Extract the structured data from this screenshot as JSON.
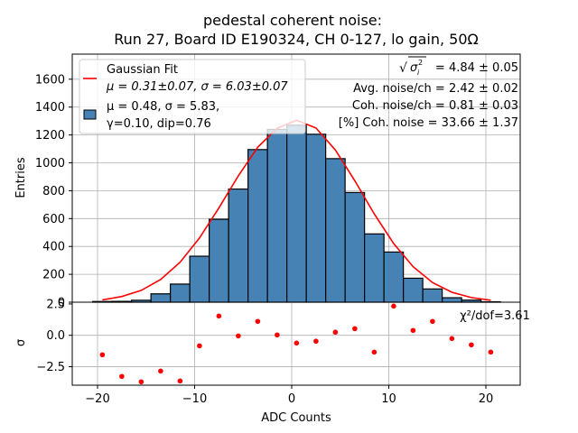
{
  "chart_data": [
    {
      "type": "bar",
      "panel": "histogram",
      "title_lines": [
        "pedestal coherent noise:",
        "Run 27, Board ID E190324, CH 0-127, lo gain, 50Ω"
      ],
      "xlabel": "",
      "ylabel": "Entries",
      "xlim": [
        -23.2,
        23.5
      ],
      "ylim": [
        0,
        1780
      ],
      "grid": true,
      "yticks": [
        0,
        200,
        400,
        600,
        800,
        1000,
        1200,
        1400,
        1600
      ],
      "ytick_labels": [
        "0",
        "200",
        "400",
        "600",
        "800",
        "1000",
        "1200",
        "1400",
        "1600"
      ],
      "xticks": [
        -20,
        -10,
        0,
        10,
        20
      ],
      "bin_width": 2,
      "categories": [
        -19.5,
        -17.5,
        -15.5,
        -13.5,
        -11.5,
        -9.5,
        -7.5,
        -5.5,
        -3.5,
        -1.5,
        0.5,
        2.5,
        4.5,
        6.5,
        8.5,
        10.5,
        12.5,
        14.5,
        16.5,
        18.5,
        20.5
      ],
      "values": [
        5,
        6,
        14,
        60,
        130,
        330,
        595,
        812,
        1095,
        1240,
        1270,
        1205,
        1030,
        787,
        490,
        360,
        172,
        95,
        32,
        15,
        3
      ],
      "bar_color": "#4682b4",
      "fit_curve": {
        "name": "Gaussian Fit",
        "color": "#ff0000",
        "x": [
          -19.5,
          -17.5,
          -15.5,
          -13.5,
          -11.5,
          -9.5,
          -7.5,
          -5.5,
          -3.5,
          -1.5,
          0.5,
          2.5,
          4.5,
          6.5,
          8.5,
          10.5,
          12.5,
          14.5,
          16.5,
          18.5,
          20.5
        ],
        "y": [
          17,
          41,
          85,
          163,
          287,
          461,
          677,
          907,
          1112,
          1248,
          1306,
          1250,
          1092,
          871,
          634,
          421,
          255,
          141,
          71,
          33,
          14
        ]
      },
      "legend": {
        "placement": "upper-left",
        "entries": [
          {
            "kind": "line",
            "color": "#ff0000",
            "lines": [
              "Gaussian Fit",
              "μ = 0.31±0.07, σ = 6.03±0.07"
            ]
          },
          {
            "kind": "patch",
            "color": "#4682b4",
            "lines": [
              "μ = 0.48, σ = 5.83,",
              "γ=0.10, dip=0.76"
            ]
          }
        ]
      },
      "annotations": {
        "placement": "upper-right",
        "lines": [
          {
            "prefix": "√",
            "symbol": "σ",
            "sub": "i",
            "sup": "2",
            "text": " = 4.84 ± 0.05"
          },
          {
            "text": "Avg. noise/ch = 2.42 ± 0.02"
          },
          {
            "text": "Coh. noise/ch = 0.81 ± 0.03"
          },
          {
            "text": "[%] Coh. noise = 33.66  ± 1.37"
          }
        ]
      }
    },
    {
      "type": "scatter",
      "panel": "residuals",
      "xlabel": "ADC Counts",
      "ylabel": "σ",
      "xlim": [
        -23.2,
        23.5
      ],
      "ylim": [
        -4.0,
        2.5
      ],
      "grid": true,
      "yticks": [
        2.5,
        0.0,
        -2.5
      ],
      "ytick_labels": [
        "2.5",
        "0.0",
        "−2.5"
      ],
      "xticks": [
        -20,
        -10,
        0,
        10,
        20
      ],
      "xtick_labels": [
        "−20",
        "−10",
        "0",
        "10",
        "20"
      ],
      "x": [
        -19.5,
        -17.5,
        -15.5,
        -13.5,
        -11.5,
        -9.5,
        -7.5,
        -5.5,
        -3.5,
        -1.5,
        0.5,
        2.5,
        4.5,
        6.5,
        8.5,
        10.5,
        12.5,
        14.5,
        16.5,
        18.5,
        20.5
      ],
      "y": [
        -1.55,
        -3.28,
        -3.71,
        -2.85,
        -3.64,
        -0.84,
        1.54,
        -0.05,
        1.11,
        0.03,
        -0.62,
        -0.47,
        0.25,
        0.53,
        -1.34,
        2.33,
        0.39,
        1.11,
        -0.26,
        -0.76,
        -1.34
      ],
      "point_color": "#ff0000",
      "annotation": "χ²/dof=3.61"
    }
  ]
}
